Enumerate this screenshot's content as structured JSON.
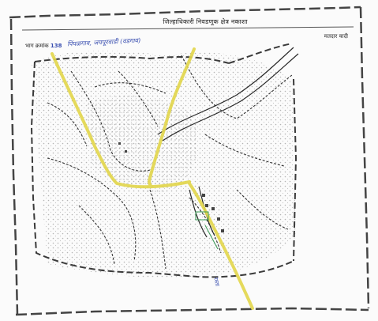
{
  "header": {
    "title": "जिल्हाधिकारी निवडणूक क्षेत्र नकाशा",
    "right_label": "मतदार यादी"
  },
  "left_label": {
    "prefix": "भाग क्रमांक",
    "number": "138"
  },
  "handwritten": {
    "location": "पिंपळगाव, जयपूरवाडी (वडगाव)",
    "road_note": "रस्ता"
  },
  "colors": {
    "paper": "#fbfbfb",
    "ink": "#2b2b2b",
    "boundary": "#555555",
    "road_yellow": "#e2d64a",
    "pen_blue": "#3a4fb0",
    "pen_green": "#3a9a55"
  }
}
